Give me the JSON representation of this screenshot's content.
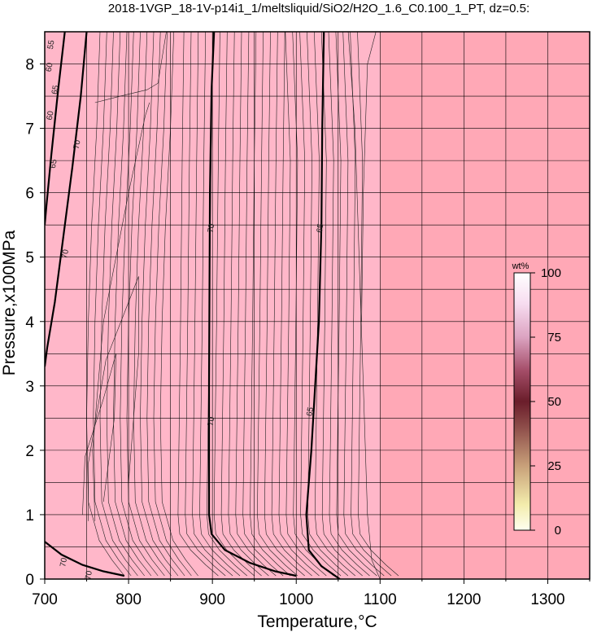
{
  "chart_data": {
    "type": "heatmap",
    "title": "2018-1VGP_18-1V-p14i1_1/meltsliquid/SiO2/H2O_1.6_C0.100_1_PT, dz=0.5:",
    "xlabel": "Temperature,°C",
    "ylabel": "Pressure,x100MPa",
    "xlim": [
      700,
      1350
    ],
    "ylim": [
      0,
      8.5
    ],
    "xticks": [
      700,
      800,
      900,
      1000,
      1100,
      1200,
      1300
    ],
    "yticks": [
      0,
      1,
      2,
      3,
      4,
      5,
      6,
      7,
      8
    ],
    "grid": true,
    "colorbar": {
      "unit": "wt%",
      "min": 0,
      "max": 100,
      "ticks": [
        0,
        25,
        50,
        75,
        100
      ],
      "placement": "right-inside"
    },
    "regions": [
      {
        "description": "subsolidus-high T uniform field",
        "x_from": 1100,
        "x_to": 1350,
        "color": "#ffa8b6"
      },
      {
        "description": "melt field",
        "x_from": 700,
        "x_to": 1100,
        "color": "#ffb7c9"
      }
    ],
    "contour_labels": [
      {
        "text": "55",
        "T": 707,
        "P": 8.3
      },
      {
        "text": "60",
        "T": 705,
        "P": 7.95
      },
      {
        "text": "65",
        "T": 712,
        "P": 7.6
      },
      {
        "text": "60",
        "T": 706,
        "P": 7.2
      },
      {
        "text": "70",
        "T": 738,
        "P": 6.75
      },
      {
        "text": "65",
        "T": 710,
        "P": 6.45
      },
      {
        "text": "70",
        "T": 724,
        "P": 5.05
      },
      {
        "text": "70",
        "T": 898,
        "P": 5.45
      },
      {
        "text": "65",
        "T": 1028,
        "P": 5.45
      },
      {
        "text": "70",
        "T": 898,
        "P": 2.45
      },
      {
        "text": "65",
        "T": 1016,
        "P": 2.6
      },
      {
        "text": "70",
        "T": 722,
        "P": 0.26
      },
      {
        "text": "70",
        "T": 752,
        "P": 0.06
      }
    ],
    "bold_contours": [
      {
        "level": "70",
        "points": [
          [
            902,
            8.5
          ],
          [
            899,
            7.6
          ],
          [
            897,
            6.0
          ],
          [
            896,
            3.0
          ],
          [
            896,
            1.0
          ],
          [
            899,
            0.7
          ],
          [
            915,
            0.45
          ],
          [
            945,
            0.25
          ],
          [
            975,
            0.12
          ],
          [
            1000,
            0.05
          ]
        ]
      },
      {
        "level": "65",
        "points": [
          [
            1033,
            8.5
          ],
          [
            1031,
            7.0
          ],
          [
            1030,
            5.5
          ],
          [
            1027,
            4.0
          ],
          [
            1018,
            2.0
          ],
          [
            1012,
            1.0
          ],
          [
            1015,
            0.45
          ],
          [
            1030,
            0.2
          ],
          [
            1052,
            0.0
          ]
        ]
      },
      {
        "level": "70",
        "points": [
          [
            750,
            8.5
          ],
          [
            743,
            7.5
          ],
          [
            733,
            6.4
          ],
          [
            722,
            5.3
          ],
          [
            712,
            4.3
          ],
          [
            703,
            3.6
          ],
          [
            700,
            3.3
          ]
        ]
      },
      {
        "level": "65",
        "points": [
          [
            724,
            8.5
          ],
          [
            716,
            7.6
          ],
          [
            708,
            6.6
          ],
          [
            702,
            5.8
          ],
          [
            700,
            5.5
          ]
        ]
      },
      {
        "level": "70",
        "points": [
          [
            700,
            0.58
          ],
          [
            720,
            0.38
          ],
          [
            745,
            0.22
          ],
          [
            770,
            0.12
          ],
          [
            795,
            0.05
          ]
        ]
      }
    ]
  }
}
